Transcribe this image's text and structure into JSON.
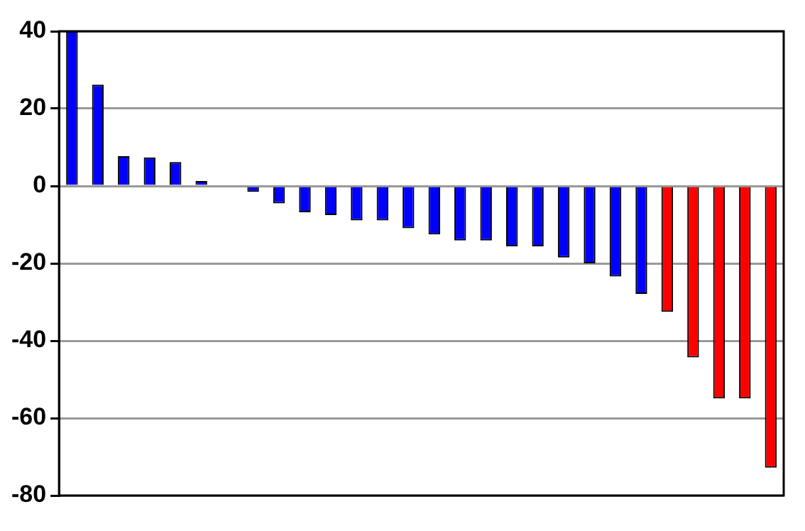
{
  "chart_data": {
    "type": "bar",
    "categories": [
      null,
      null,
      null,
      null,
      null,
      null,
      null,
      null,
      null,
      null,
      null,
      null,
      null,
      null,
      null,
      null,
      null,
      null,
      null,
      null,
      null,
      null,
      null,
      null,
      null,
      null,
      null,
      null
    ],
    "values": [
      40,
      26.2,
      7.7,
      7.4,
      6.2,
      1.3,
      null,
      -1.5,
      -4.5,
      -6.8,
      -7.5,
      -8.9,
      -8.9,
      -10.9,
      -12.5,
      -14.1,
      -14.1,
      -15.6,
      -15.6,
      -18.5,
      -20,
      -23.4,
      -27.9,
      -32.5,
      -44.3,
      -54.9,
      -54.9,
      -72.8
    ],
    "colors": [
      "#0000ff",
      "#0000ff",
      "#0000ff",
      "#0000ff",
      "#0000ff",
      "#0000ff",
      "#0000ff",
      "#0000ff",
      "#0000ff",
      "#0000ff",
      "#0000ff",
      "#0000ff",
      "#0000ff",
      "#0000ff",
      "#0000ff",
      "#0000ff",
      "#0000ff",
      "#0000ff",
      "#0000ff",
      "#0000ff",
      "#0000ff",
      "#0000ff",
      "#0000ff",
      "#ff0000",
      "#ff0000",
      "#ff0000",
      "#ff0000",
      "#ff0000"
    ],
    "ylim": [
      -80,
      40
    ],
    "yticks": [
      -80,
      -60,
      -40,
      -20,
      0,
      20,
      40
    ],
    "grid": "y",
    "legend": false
  }
}
